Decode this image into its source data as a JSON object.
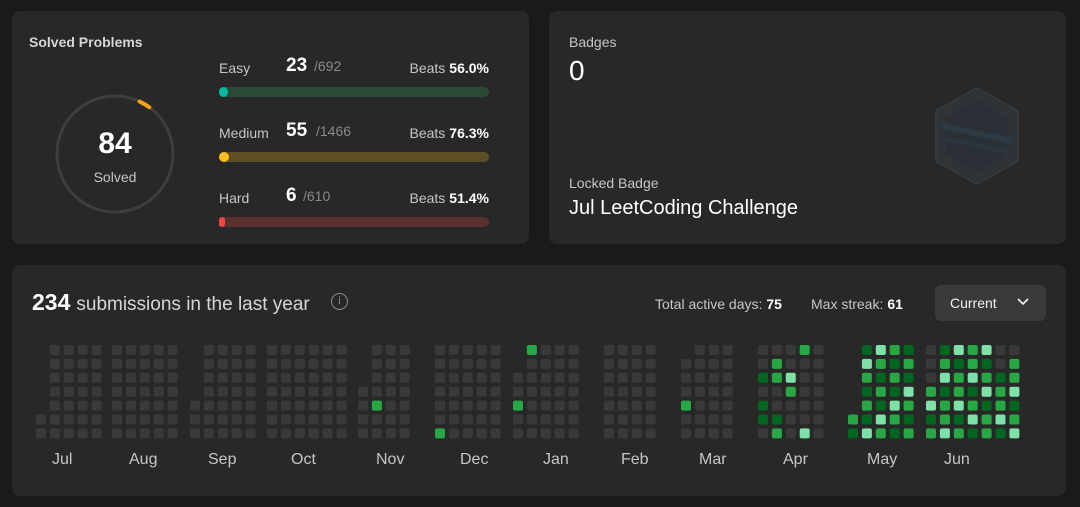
{
  "solved": {
    "title": "Solved Problems",
    "count": "84",
    "count_label": "Solved",
    "ring_fraction": 0.0305,
    "difficulties": [
      {
        "name": "Easy",
        "count": "23",
        "total": "/692",
        "beats_label": "Beats",
        "beats": "56.0%",
        "fraction": 0.0332,
        "color": "#00b8a3",
        "track": "#2b4a36"
      },
      {
        "name": "Medium",
        "count": "55",
        "total": "/1466",
        "beats_label": "Beats",
        "beats": "76.3%",
        "fraction": 0.0375,
        "color": "#ffc01e",
        "track": "#5e4e25"
      },
      {
        "name": "Hard",
        "count": "6",
        "total": "/610",
        "beats_label": "Beats",
        "beats": "51.4%",
        "fraction": 0.0098,
        "color": "#ef4743",
        "track": "#5a302f"
      }
    ]
  },
  "badges": {
    "label": "Badges",
    "count": "0",
    "locked_label": "Locked Badge",
    "locked_name": "Jul LeetCoding Challenge",
    "art_icon": "hexagon-badge-icon"
  },
  "activity": {
    "count": "234",
    "title_rest": "submissions in the last year",
    "info_icon": "i",
    "active_days_label": "Total active days:",
    "active_days": "75",
    "max_streak_label": "Max streak:",
    "max_streak": "61",
    "dropdown_label": "Current",
    "months": [
      "Jul",
      "Aug",
      "Sep",
      "Oct",
      "Nov",
      "Dec",
      "Jan",
      "Feb",
      "Mar",
      "Apr",
      "May",
      "Jun"
    ],
    "colors": {
      "empty": "#393939",
      "low": "#016620",
      "mid": "#28a745",
      "high": "#7ee2a8"
    }
  }
}
